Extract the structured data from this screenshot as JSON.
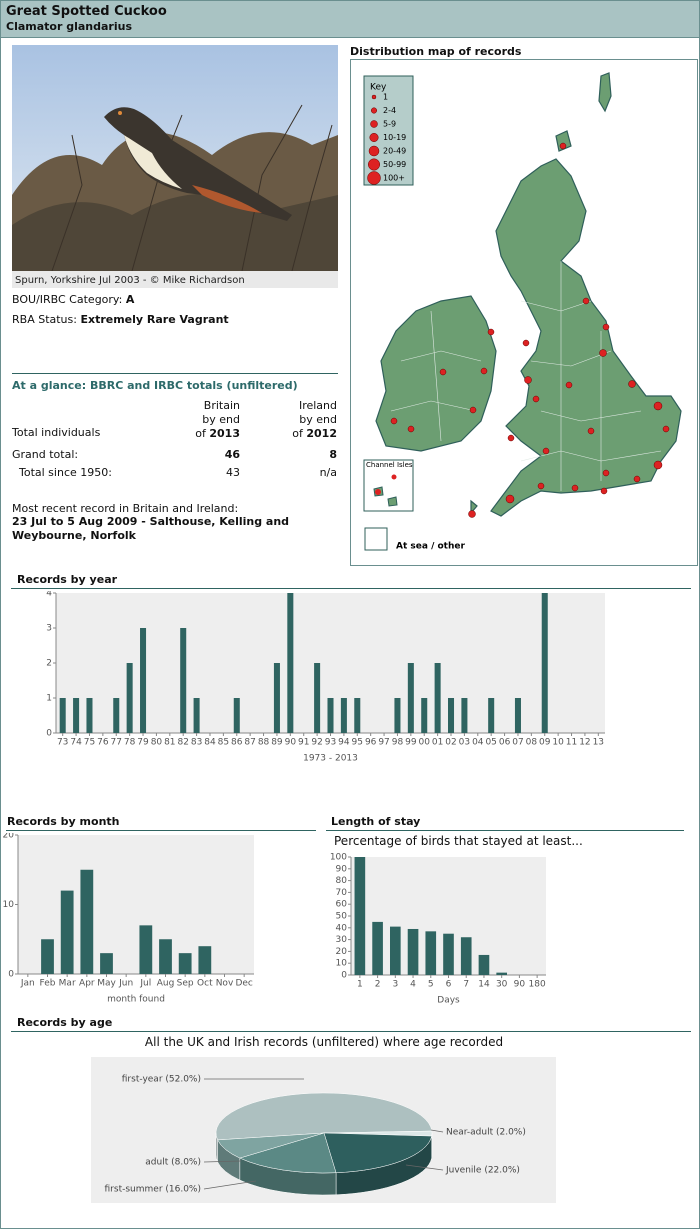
{
  "header": {
    "title": "Great Spotted Cuckoo",
    "subtitle": "Clamator glandarius"
  },
  "photo": {
    "caption": "Spurn, Yorkshire Jul 2003 - © Mike Richardson"
  },
  "status": {
    "category_label": "BOU/IRBC Category:",
    "category": "A",
    "rba_label": "RBA Status:",
    "rba": "Extremely Rare Vagrant"
  },
  "glance": {
    "title": "At a glance: BBRC and IRBC totals (unfiltered)",
    "columns": [
      {
        "name": "Britain",
        "by": "by end",
        "of": "of",
        "year": "2013"
      },
      {
        "name": "Ireland",
        "by": "by end",
        "of": "of",
        "year": "2012"
      }
    ],
    "row_title": "Total individuals",
    "rows": [
      [
        "Grand total:",
        "46",
        "8"
      ],
      [
        "Total since 1950:",
        "43",
        "n/a"
      ]
    ]
  },
  "recent": {
    "label": "Most recent record in Britain and Ireland:",
    "record": "23 Jul to 5 Aug 2009 - Salthouse, Kelling and Weybourne, Norfolk"
  },
  "map": {
    "title": "Distribution map of records",
    "key_title": "Key",
    "key": [
      "1",
      "2-4",
      "5-9",
      "10-19",
      "20-49",
      "50-99",
      "100+"
    ],
    "channel": "Channel Isles",
    "sea": "At sea / other"
  },
  "chart_data": [
    {
      "type": "bar",
      "title": "Records by year",
      "xlabel": "1973 - 2013",
      "categories": [
        "73",
        "74",
        "75",
        "76",
        "77",
        "78",
        "79",
        "80",
        "81",
        "82",
        "83",
        "84",
        "85",
        "86",
        "87",
        "88",
        "89",
        "90",
        "91",
        "92",
        "93",
        "94",
        "95",
        "96",
        "97",
        "98",
        "99",
        "00",
        "01",
        "02",
        "03",
        "04",
        "05",
        "06",
        "07",
        "08",
        "09",
        "10",
        "11",
        "12",
        "13"
      ],
      "values": [
        1,
        1,
        1,
        0,
        1,
        2,
        3,
        0,
        0,
        3,
        1,
        0,
        0,
        1,
        0,
        0,
        2,
        4,
        0,
        2,
        1,
        1,
        1,
        0,
        0,
        1,
        2,
        1,
        2,
        1,
        1,
        0,
        1,
        0,
        1,
        0,
        4,
        0,
        0,
        0,
        0
      ],
      "color": "#2f6461",
      "ylim": [
        0,
        4
      ],
      "yticks": [
        0,
        1,
        2,
        3,
        4
      ]
    },
    {
      "type": "bar",
      "title": "Records by month",
      "xlabel": "month found",
      "categories": [
        "Jan",
        "Feb",
        "Mar",
        "Apr",
        "May",
        "Jun",
        "Jul",
        "Aug",
        "Sep",
        "Oct",
        "Nov",
        "Dec"
      ],
      "values": [
        0,
        5,
        12,
        15,
        3,
        0,
        7,
        5,
        3,
        4,
        0,
        0
      ],
      "color": "#2f6461",
      "ylim": [
        0,
        20
      ],
      "yticks": [
        0,
        10,
        20
      ]
    },
    {
      "type": "bar",
      "title": "Length of stay",
      "subtitle": "Percentage of birds that stayed at least...",
      "xlabel": "Days",
      "categories": [
        "1",
        "2",
        "3",
        "4",
        "5",
        "6",
        "7",
        "14",
        "30",
        "90",
        "180"
      ],
      "values": [
        100,
        45,
        41,
        39,
        37,
        35,
        32,
        17,
        2,
        0,
        0
      ],
      "color": "#2f6461",
      "ylim": [
        0,
        100
      ],
      "yticks": [
        0,
        10,
        20,
        30,
        40,
        50,
        60,
        70,
        80,
        90,
        100
      ]
    },
    {
      "type": "pie",
      "title": "Records by age",
      "subtitle": "All the UK and Irish records (unfiltered) where age recorded",
      "categories": [
        "first-year (52.0%)",
        "Near-adult (2.0%)",
        "Juvenile (22.0%)",
        "first-summer (16.0%)",
        "adult (8.0%)"
      ],
      "values": [
        52,
        2,
        22,
        16,
        8
      ],
      "colors": [
        "#adc0c0",
        "#dde8e8",
        "#2e5f5e",
        "#5b8985",
        "#7fa4a1"
      ]
    }
  ]
}
